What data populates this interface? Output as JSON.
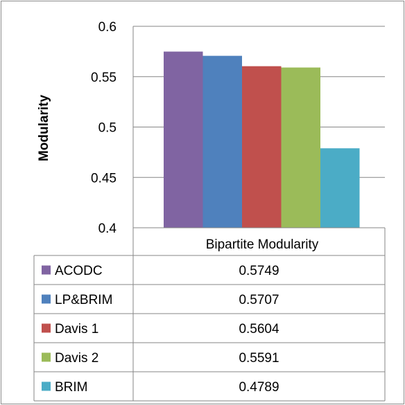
{
  "chart_data": {
    "type": "bar",
    "ylabel": "Modularity",
    "ylim": [
      0.4,
      0.6
    ],
    "yticks": [
      "0.4",
      "0.45",
      "0.5",
      "0.55",
      "0.6"
    ],
    "grid": true,
    "categories": [
      "Bipartite Modularity"
    ],
    "series": [
      {
        "name": "ACODC",
        "values": [
          0.5749
        ],
        "label": "0.5749",
        "color": "#8064A2"
      },
      {
        "name": "LP&BRIM",
        "values": [
          0.5707
        ],
        "label": "0.5707",
        "color": "#4F81BD"
      },
      {
        "name": "Davis 1",
        "values": [
          0.5604
        ],
        "label": "0.5604",
        "color": "#C0504D"
      },
      {
        "name": "Davis 2",
        "values": [
          0.5591
        ],
        "label": "0.5591",
        "color": "#9BBB59"
      },
      {
        "name": "BRIM",
        "values": [
          0.4789
        ],
        "label": "0.4789",
        "color": "#4BACC6"
      }
    ],
    "legend": "data-table-below"
  }
}
